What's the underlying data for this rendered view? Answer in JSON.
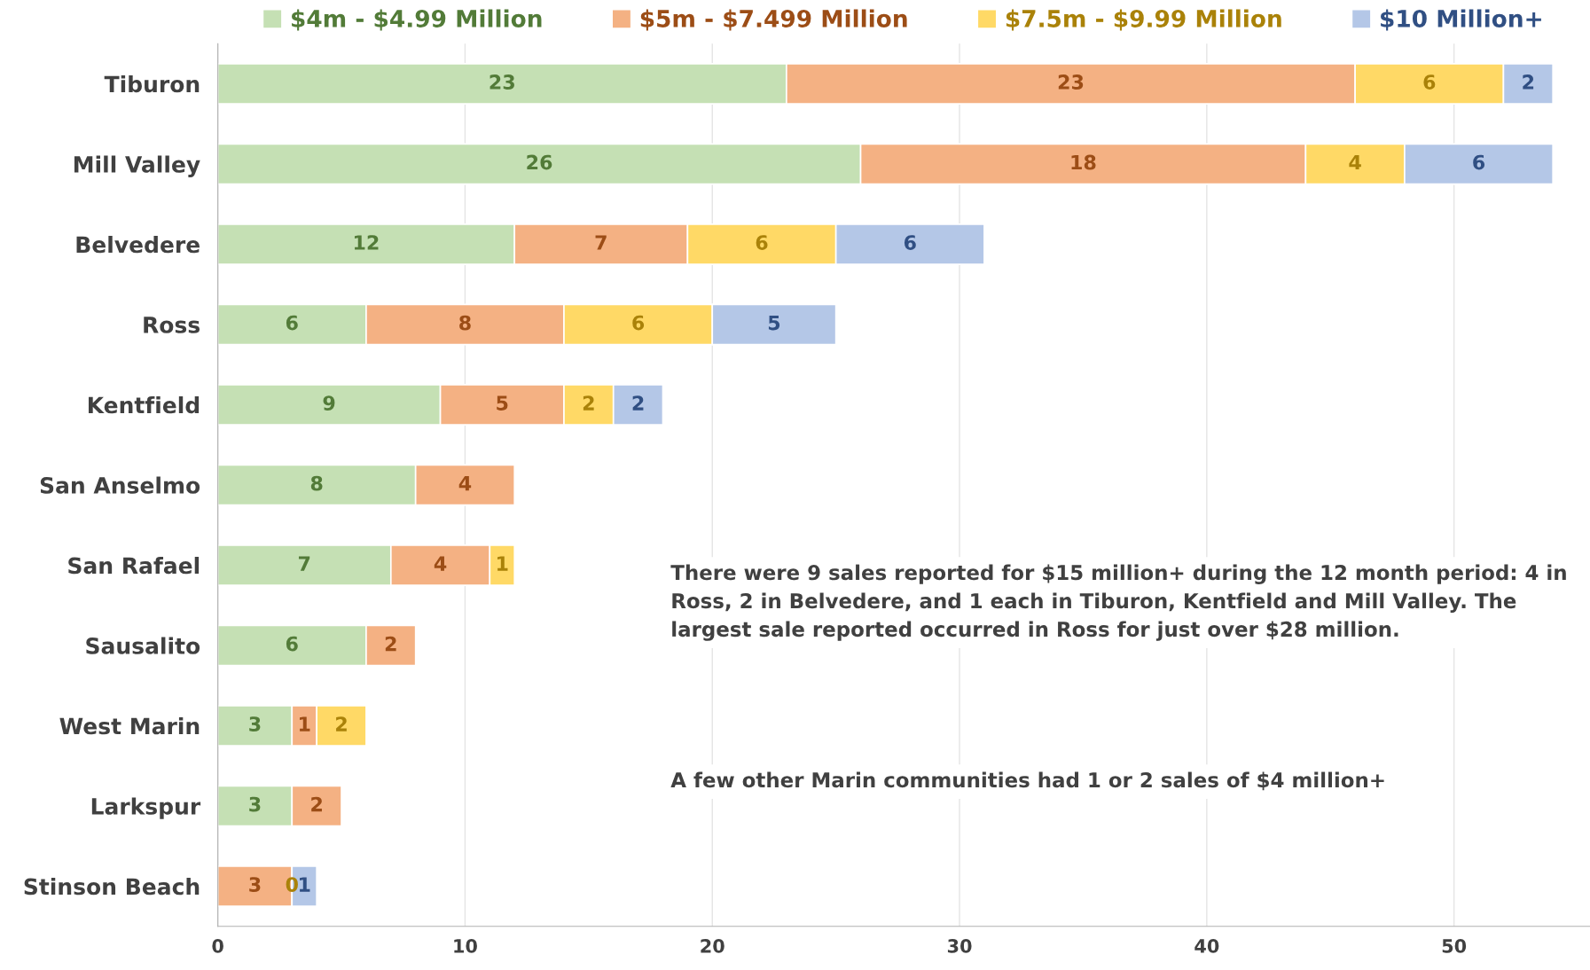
{
  "chart_data": {
    "type": "bar",
    "orientation": "horizontal",
    "stacked": true,
    "categories": [
      "Tiburon",
      "Mill Valley",
      "Belvedere",
      "Ross",
      "Kentfield",
      "San Anselmo",
      "San Rafael",
      "Sausalito",
      "West Marin",
      "Larkspur",
      "Stinson Beach"
    ],
    "series": [
      {
        "name": "$4m - $4.99 Million",
        "color": "#c5e0b4",
        "values": [
          23,
          26,
          12,
          6,
          9,
          8,
          7,
          6,
          3,
          3,
          null
        ]
      },
      {
        "name": "$5m - $7.499 Million",
        "color": "#f4b183",
        "values": [
          23,
          18,
          7,
          8,
          5,
          4,
          4,
          2,
          1,
          2,
          3
        ]
      },
      {
        "name": "$7.5m - $9.99 Million",
        "color": "#ffd966",
        "values": [
          6,
          4,
          6,
          6,
          2,
          null,
          1,
          null,
          2,
          null,
          0
        ]
      },
      {
        "name": "$10 Million+",
        "color": "#b4c7e7",
        "values": [
          2,
          6,
          6,
          5,
          2,
          null,
          null,
          null,
          null,
          null,
          1
        ]
      }
    ],
    "xlim": [
      0,
      55.5
    ],
    "xticks": [
      0,
      10,
      20,
      30,
      40,
      50
    ],
    "grid": "x",
    "legend": "top",
    "data_labels": true,
    "annotations": [
      "There were 9 sales reported for $15 million+ during the 12 month period: 4 in Ross, 2 in Belvedere, and 1 each in Tiburon, Kentfield and Mill Valley. The largest sale reported occurred in Ross for just over $28 million.",
      "A few other Marin communities had 1 or 2 sales of $4 million+"
    ]
  }
}
